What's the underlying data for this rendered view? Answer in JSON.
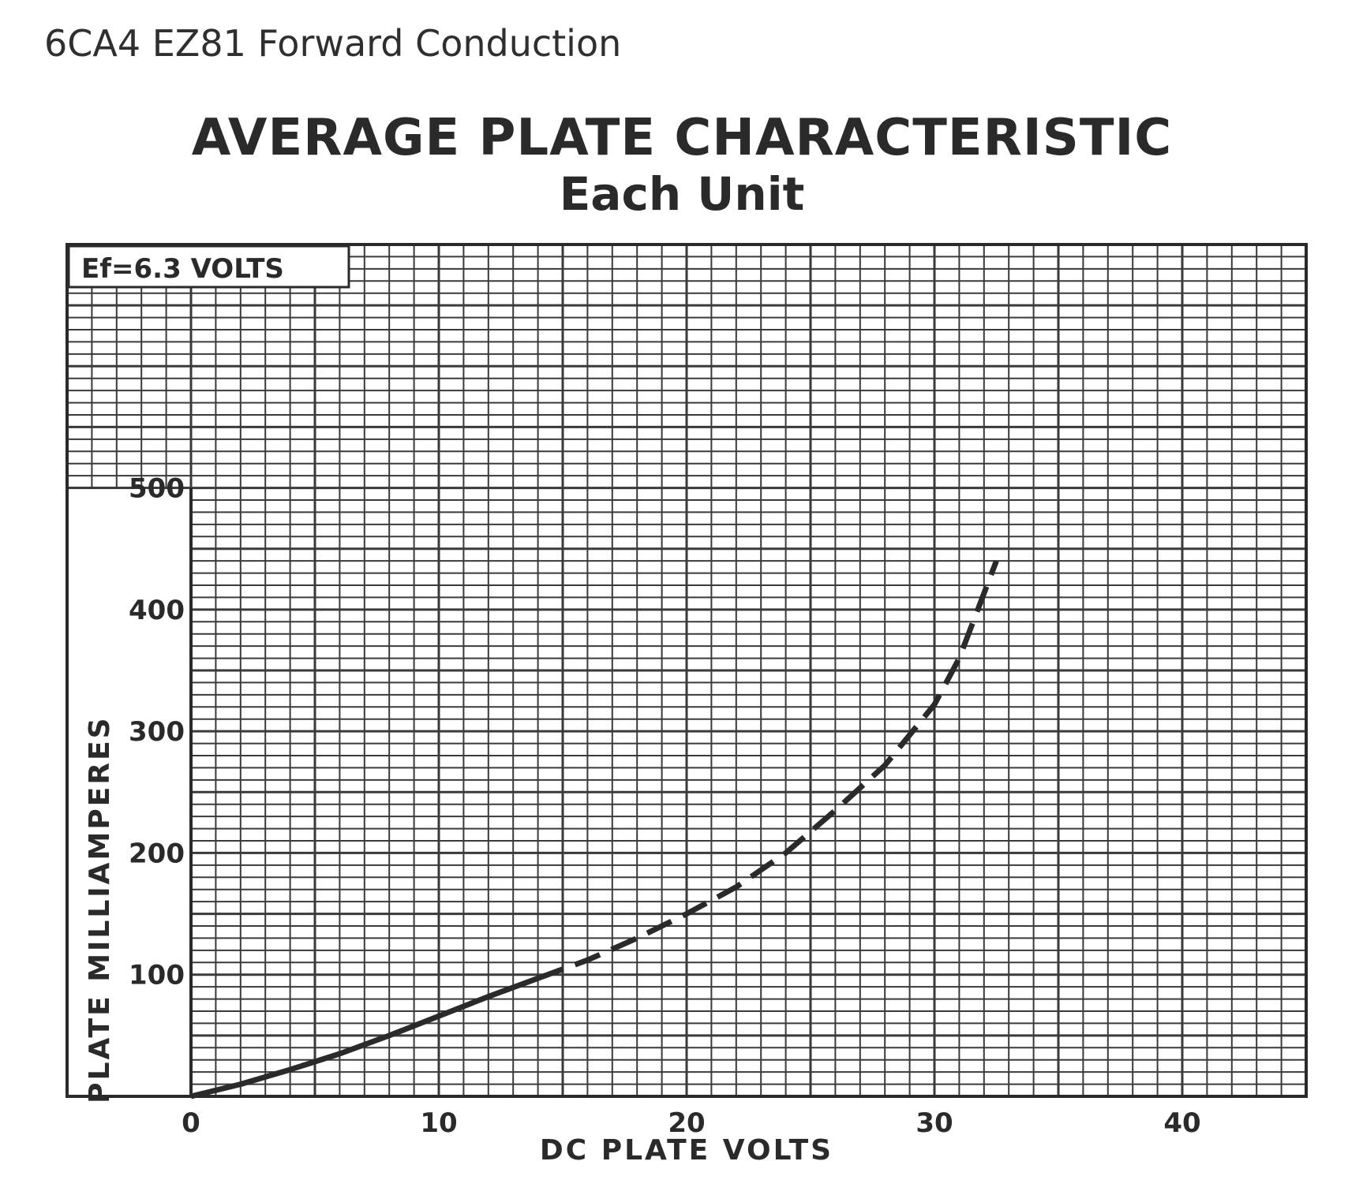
{
  "document": {
    "caption": "6CA4 EZ81 Forward Conduction"
  },
  "chart_data": {
    "type": "line",
    "title": "AVERAGE PLATE CHARACTERISTIC",
    "subtitle": "Each Unit",
    "condition_label": "Ef=6.3 VOLTS",
    "xlabel": "DC PLATE VOLTS",
    "ylabel": "PLATE MILLIAMPERES",
    "xlim": [
      -5,
      45
    ],
    "ylim": [
      0,
      700
    ],
    "x_ticks": [
      0,
      10,
      20,
      30,
      40
    ],
    "y_ticks": [
      100,
      200,
      300,
      400,
      500
    ],
    "grid": true,
    "legend": "none",
    "series": [
      {
        "style": "solid",
        "color": "#2a2a2a",
        "x": [
          0,
          2,
          4,
          6,
          8,
          10,
          12,
          14
        ],
        "y": [
          0,
          10,
          22,
          35,
          50,
          66,
          82,
          97
        ]
      },
      {
        "style": "dashed",
        "color": "#2a2a2a",
        "x": [
          14,
          16,
          18,
          20,
          22,
          24,
          26,
          28,
          30,
          31,
          32.5
        ],
        "y": [
          97,
          112,
          130,
          150,
          172,
          200,
          235,
          272,
          322,
          360,
          440
        ]
      }
    ]
  }
}
